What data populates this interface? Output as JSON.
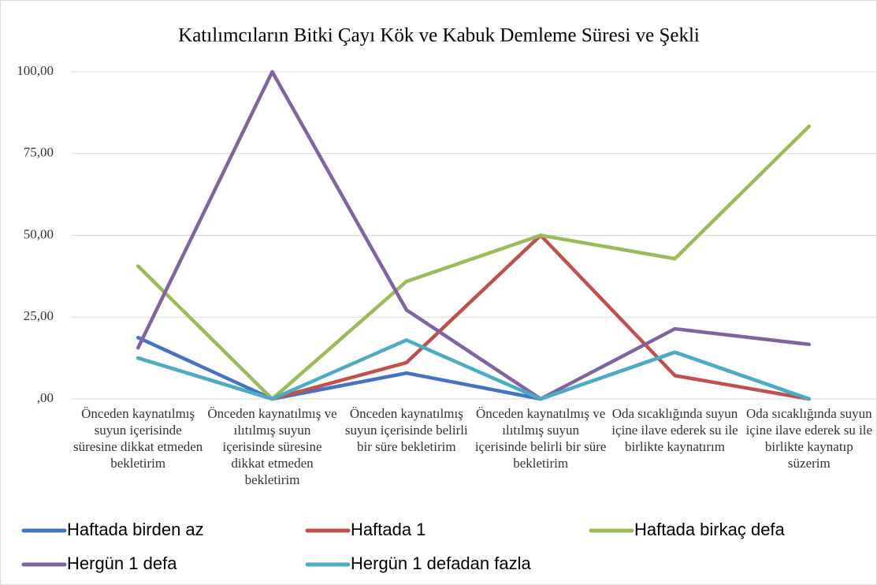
{
  "chart_data": {
    "type": "line",
    "title": "Katılımcıların Bitki Çayı Kök ve Kabuk Demleme Süresi ve Şekli",
    "categories": [
      "Önceden kaynatılmış suyun içerisinde süresine dikkat etmeden bekletirim",
      "Önceden kaynatılmış ve ılıtılmış suyun içerisinde süresine dikkat etmeden bekletirim",
      "Önceden kaynatılmış suyun içerisinde belirli bir süre bekletirim",
      "Önceden kaynatılmış ve ılıtılmış suyun içerisinde belirli bir süre bekletirim",
      "Oda sıcaklığında suyun içine ilave ederek su ile birlikte kaynatırım",
      "Oda sıcaklığında suyun içine ilave ederek su ile birlikte kaynatıp süzerim"
    ],
    "series": [
      {
        "name": "Haftada birden az",
        "color": "#4472c4",
        "values": [
          18.75,
          0,
          7.9,
          0,
          14.29,
          0
        ]
      },
      {
        "name": "Haftada 1",
        "color": "#c0504d",
        "values": [
          12.5,
          0,
          11.1,
          50,
          7.14,
          0
        ]
      },
      {
        "name": "Haftada birkaç defa",
        "color": "#9bbb59",
        "values": [
          40.6,
          0,
          35.9,
          50,
          42.86,
          83.33
        ]
      },
      {
        "name": "Hergün 1 defa",
        "color": "#8064a2",
        "values": [
          15.6,
          100,
          27.2,
          0,
          21.43,
          16.67
        ]
      },
      {
        "name": "Hergün 1 defadan fazla",
        "color": "#4bacc6",
        "values": [
          12.5,
          0,
          18.0,
          0,
          14.29,
          0
        ]
      }
    ],
    "ylim": [
      0,
      100
    ],
    "yticks": [
      {
        "value": 0,
        "label": ",00"
      },
      {
        "value": 25,
        "label": "25,00"
      },
      {
        "value": 50,
        "label": "50,00"
      },
      {
        "value": 75,
        "label": "75,00"
      },
      {
        "value": 100,
        "label": "100,00"
      }
    ],
    "grid": true
  }
}
